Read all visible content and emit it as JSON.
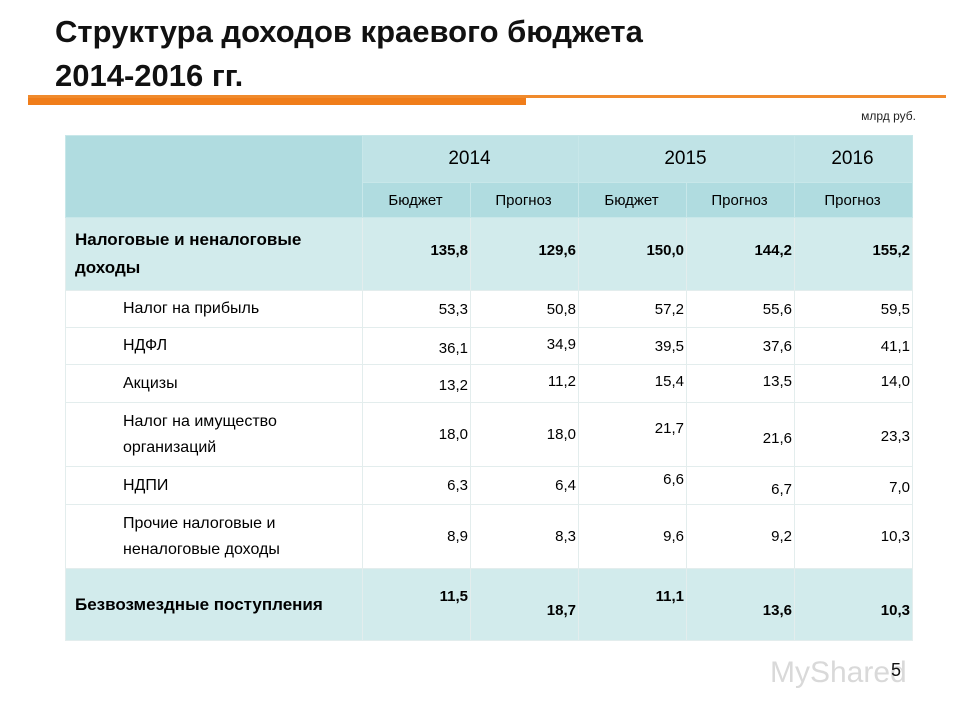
{
  "header": {
    "title_line1": "Структура доходов краевого бюджета",
    "title_line2": "2014-2016 гг.",
    "unit": "млрд руб."
  },
  "table": {
    "years": [
      {
        "label": "2014",
        "span": 2
      },
      {
        "label": "2015",
        "span": 2
      },
      {
        "label": "2016",
        "span": 1
      }
    ],
    "subheaders": [
      "Бюджет",
      "Прогноз",
      "Бюджет",
      "Прогноз",
      "Прогноз"
    ],
    "rows": [
      {
        "label": "Налоговые и неналоговые доходы",
        "values": [
          "135,8",
          "129,6",
          "150,0",
          "144,2",
          "155,2"
        ],
        "bold": true
      },
      {
        "label": "Налог на прибыль",
        "values": [
          "53,3",
          "50,8",
          "57,2",
          "55,6",
          "59,5"
        ],
        "bold": false
      },
      {
        "label": "НДФЛ",
        "values": [
          "36,1",
          "34,9",
          "39,5",
          "37,6",
          "41,1"
        ],
        "bold": false
      },
      {
        "label": "Акцизы",
        "values": [
          "13,2",
          "11,2",
          "15,4",
          "13,5",
          "14,0"
        ],
        "bold": false
      },
      {
        "label": "Налог на имущество организаций",
        "values": [
          "18,0",
          "18,0",
          "21,7",
          "21,6",
          "23,3"
        ],
        "bold": false
      },
      {
        "label": "НДПИ",
        "values": [
          "6,3",
          "6,4",
          "6,6",
          "6,7",
          "7,0"
        ],
        "bold": false
      },
      {
        "label": "Прочие налоговые и неналоговые доходы",
        "values": [
          "8,9",
          "8,3",
          "9,6",
          "9,2",
          "10,3"
        ],
        "bold": false
      },
      {
        "label": "Безвозмездные поступления",
        "values": [
          "11,5",
          "18,7",
          "11,1",
          "13,6",
          "10,3"
        ],
        "bold": true
      }
    ]
  },
  "footer": {
    "page": "5",
    "watermark": "MyShared"
  }
}
